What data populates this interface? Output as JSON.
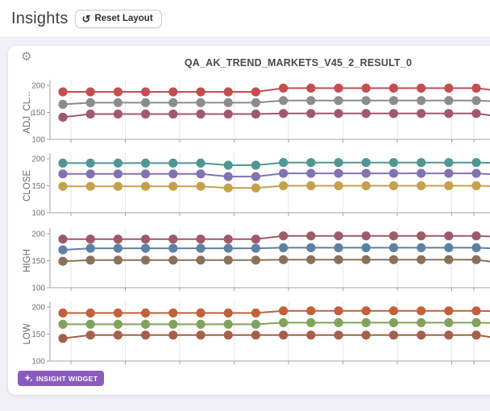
{
  "header": {
    "title": "Insights",
    "reset_button_label": "Reset Layout"
  },
  "icons": {
    "reset": "↺",
    "gear": "⚙"
  },
  "widget": {
    "badge_label": "INSIGHT WIDGET"
  },
  "chart_data": {
    "type": "line",
    "title": "QA_AK_TREND_MARKETS_V45_2_RESULT_0",
    "x_count": 17,
    "yticks": [
      200,
      150,
      100
    ],
    "ylim": [
      100,
      210
    ],
    "grid": true,
    "legend": false,
    "marker": "circle",
    "subplots": [
      {
        "ylabel": "ADJ_CL...",
        "series": [
          {
            "color": "#c24e52",
            "values": [
              188,
              188,
              188,
              188,
              188,
              188,
              188,
              188,
              195,
              195,
              195,
              195,
              195,
              195,
              195,
              195,
              189
            ]
          },
          {
            "color": "#8c8c8c",
            "values": [
              165,
              168,
              168,
              168,
              168,
              168,
              168,
              168,
              172,
              172,
              172,
              172,
              172,
              172,
              172,
              172,
              170
            ]
          },
          {
            "color": "#a05870",
            "values": [
              141,
              147,
              147,
              147,
              147,
              147,
              147,
              147,
              148,
              148,
              148,
              148,
              148,
              148,
              148,
              148,
              141
            ]
          }
        ]
      },
      {
        "ylabel": "CLOSE",
        "series": [
          {
            "color": "#4f9792",
            "values": [
              192,
              192,
              192,
              192,
              192,
              192,
              188,
              188,
              193,
              193,
              193,
              193,
              193,
              193,
              193,
              193,
              192
            ]
          },
          {
            "color": "#8272b0",
            "values": [
              172,
              172,
              172,
              172,
              172,
              172,
              167,
              167,
              173,
              173,
              173,
              173,
              173,
              173,
              173,
              173,
              170
            ]
          },
          {
            "color": "#c3a24b",
            "values": [
              149,
              149,
              149,
              149,
              149,
              149,
              146,
              146,
              150,
              150,
              150,
              150,
              150,
              150,
              150,
              150,
              149
            ]
          }
        ]
      },
      {
        "ylabel": "HIGH",
        "series": [
          {
            "color": "#9d5a68",
            "values": [
              190,
              190,
              190,
              190,
              190,
              190,
              190,
              190,
              196,
              196,
              196,
              196,
              196,
              196,
              196,
              196,
              194
            ]
          },
          {
            "color": "#5e80a5",
            "values": [
              170,
              173,
              173,
              173,
              173,
              173,
              173,
              173,
              174,
              174,
              174,
              174,
              174,
              174,
              174,
              174,
              172
            ]
          },
          {
            "color": "#8b7158",
            "values": [
              149,
              151,
              151,
              151,
              151,
              151,
              151,
              151,
              152,
              152,
              152,
              152,
              152,
              152,
              152,
              152,
              145
            ]
          }
        ]
      },
      {
        "ylabel": "LOW",
        "series": [
          {
            "color": "#c2603c",
            "values": [
              189,
              189,
              189,
              189,
              189,
              189,
              189,
              189,
              193,
              193,
              193,
              193,
              193,
              193,
              193,
              193,
              192
            ]
          },
          {
            "color": "#80a35c",
            "values": [
              168,
              168,
              168,
              168,
              168,
              168,
              168,
              168,
              171,
              171,
              171,
              171,
              171,
              171,
              171,
              171,
              170
            ]
          },
          {
            "color": "#a56049",
            "values": [
              142,
              148,
              148,
              148,
              148,
              148,
              148,
              148,
              148,
              148,
              148,
              148,
              148,
              148,
              148,
              148,
              141
            ]
          }
        ]
      }
    ]
  }
}
